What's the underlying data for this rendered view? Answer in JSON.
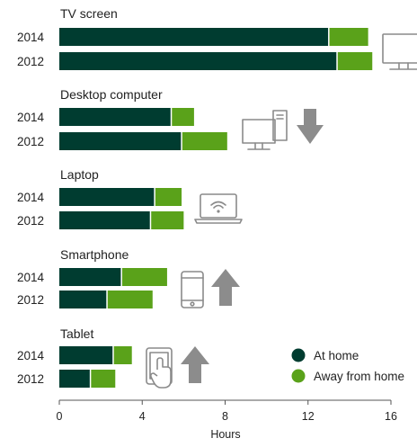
{
  "chart_data": {
    "type": "bar",
    "orientation": "horizontal",
    "stacked": true,
    "groups": [
      {
        "label": "TV screen",
        "icon": "tv-icon",
        "trend": "none",
        "rows": [
          {
            "year": "2014",
            "at_home": 13.0,
            "away": 1.9
          },
          {
            "year": "2012",
            "at_home": 13.4,
            "away": 1.7
          }
        ]
      },
      {
        "label": "Desktop computer",
        "icon": "desktop-computer-icon",
        "trend": "down",
        "rows": [
          {
            "year": "2014",
            "at_home": 5.4,
            "away": 1.1
          },
          {
            "year": "2012",
            "at_home": 5.9,
            "away": 2.2
          }
        ]
      },
      {
        "label": "Laptop",
        "icon": "laptop-icon",
        "trend": "none",
        "rows": [
          {
            "year": "2014",
            "at_home": 4.6,
            "away": 1.3
          },
          {
            "year": "2012",
            "at_home": 4.4,
            "away": 1.6
          }
        ]
      },
      {
        "label": "Smartphone",
        "icon": "smartphone-icon",
        "trend": "up",
        "rows": [
          {
            "year": "2014",
            "at_home": 3.0,
            "away": 2.2
          },
          {
            "year": "2012",
            "at_home": 2.3,
            "away": 2.2
          }
        ]
      },
      {
        "label": "Tablet",
        "icon": "tablet-icon",
        "trend": "up",
        "rows": [
          {
            "year": "2014",
            "at_home": 2.6,
            "away": 0.9
          },
          {
            "year": "2012",
            "at_home": 1.5,
            "away": 1.2
          }
        ]
      }
    ],
    "series": [
      {
        "name": "At home",
        "key": "at_home",
        "color": "#003c30"
      },
      {
        "name": "Away from home",
        "key": "away",
        "color": "#5aa21a"
      }
    ],
    "xlabel": "Hours",
    "xlim": [
      0,
      16
    ],
    "xticks": [
      0,
      4,
      8,
      12,
      16
    ],
    "legend_position": "bottom-right",
    "grid": false
  }
}
